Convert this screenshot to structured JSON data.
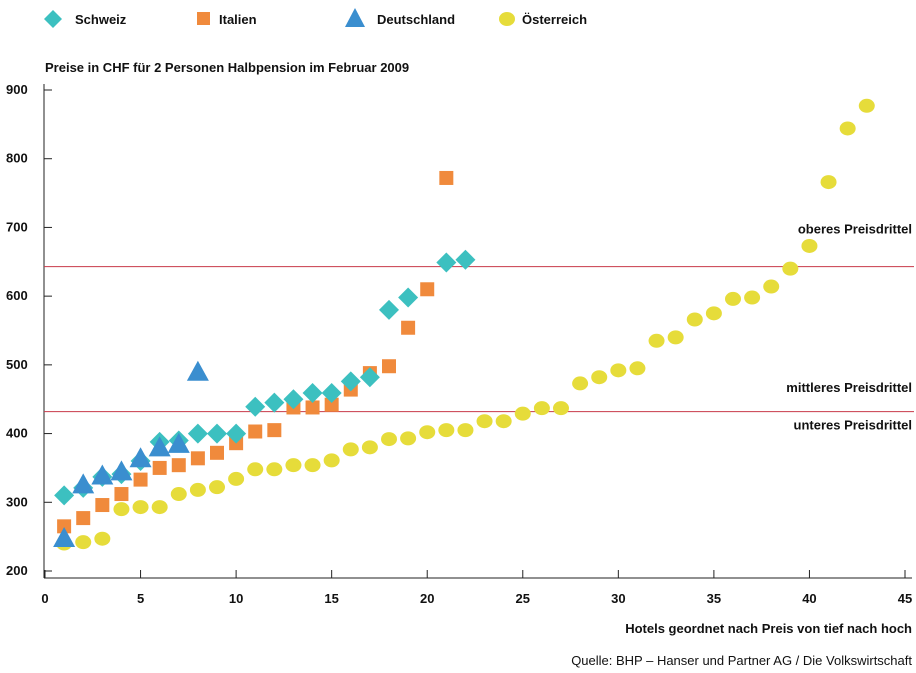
{
  "chart_data": {
    "type": "scatter",
    "subtitle": "Preise in CHF für 2 Personen Halbpension im Februar 2009",
    "xlabel": "Hotels  geordnet nach Preis von tief nach hoch",
    "ylabel": "",
    "source": "Quelle: BHP – Hanser und Partner AG / Die Volkswirtschaft",
    "xlim": [
      0,
      45
    ],
    "ylim": [
      200,
      900
    ],
    "xticks": [
      0,
      5,
      10,
      15,
      20,
      25,
      30,
      35,
      40,
      45
    ],
    "yticks": [
      200,
      300,
      400,
      500,
      600,
      700,
      800,
      900
    ],
    "grid": false,
    "legend_position": "top",
    "reference_lines": [
      {
        "y": 643,
        "color": "#c83a4a"
      },
      {
        "y": 432,
        "color": "#c83a4a"
      }
    ],
    "band_labels": [
      {
        "text": "oberes Preisdrittel",
        "y": 697
      },
      {
        "text": "mittleres Preisdrittel",
        "y": 466
      },
      {
        "text": "unteres Preisdrittel",
        "y": 412
      }
    ],
    "series": [
      {
        "name": "Schweiz",
        "marker": "diamond",
        "color": "#3cc0c0",
        "x": [
          1,
          2,
          3,
          4,
          5,
          6,
          7,
          8,
          9,
          10,
          11,
          12,
          13,
          14,
          15,
          16,
          17,
          18,
          19,
          21,
          22
        ],
        "y": [
          310,
          321,
          337,
          341,
          360,
          388,
          390,
          400,
          400,
          400,
          439,
          445,
          450,
          459,
          459,
          476,
          482,
          580,
          598,
          649,
          653
        ]
      },
      {
        "name": "Italien",
        "marker": "square",
        "color": "#f08a3c",
        "x": [
          1,
          2,
          3,
          4,
          5,
          6,
          7,
          8,
          9,
          10,
          11,
          12,
          13,
          14,
          15,
          16,
          17,
          18,
          19,
          20,
          21
        ],
        "y": [
          265,
          277,
          296,
          312,
          333,
          350,
          354,
          364,
          372,
          386,
          403,
          405,
          438,
          438,
          442,
          464,
          488,
          498,
          554,
          610,
          772
        ]
      },
      {
        "name": "Deutschland",
        "marker": "triangle",
        "color": "#3a8ecf",
        "x": [
          1,
          2,
          3,
          4,
          5,
          6,
          7,
          8
        ],
        "y": [
          248,
          326,
          339,
          345,
          364,
          380,
          385,
          490
        ]
      },
      {
        "name": "Österreich",
        "marker": "circle",
        "color": "#e6dc3a",
        "x": [
          1,
          2,
          3,
          4,
          5,
          6,
          7,
          8,
          9,
          10,
          11,
          12,
          13,
          14,
          15,
          16,
          17,
          18,
          19,
          20,
          21,
          22,
          23,
          24,
          25,
          26,
          27,
          28,
          29,
          30,
          31,
          32,
          33,
          34,
          35,
          36,
          37,
          38,
          39,
          40,
          41,
          42,
          43
        ],
        "y": [
          240,
          242,
          247,
          290,
          293,
          293,
          312,
          318,
          322,
          334,
          348,
          348,
          354,
          354,
          361,
          377,
          380,
          392,
          393,
          402,
          405,
          405,
          418,
          418,
          429,
          437,
          437,
          473,
          482,
          492,
          495,
          535,
          540,
          566,
          575,
          596,
          598,
          614,
          640,
          673,
          766,
          844,
          877
        ]
      }
    ]
  }
}
